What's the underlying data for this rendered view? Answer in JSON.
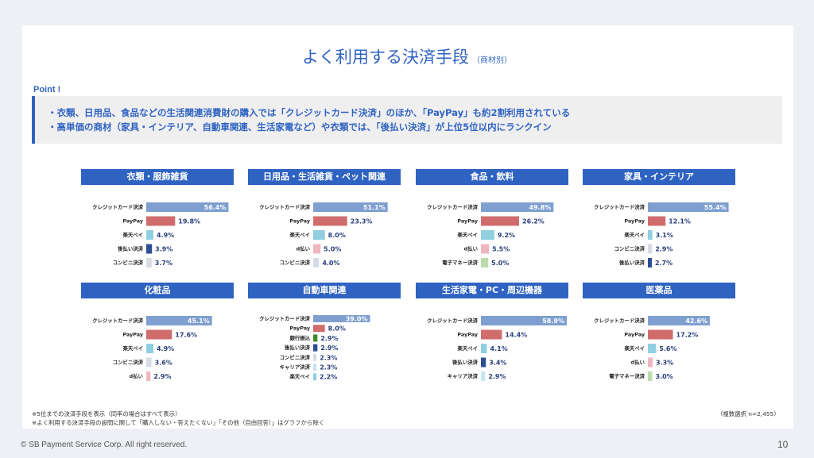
{
  "title": "よく利用する決済手段",
  "subtitle": "（商材別）",
  "point_label": "Point !",
  "points": [
    "・衣類、日用品、食品などの生活関連消費財の購入では「クレジットカード決済」のほか、「PayPay」も約2割利用されている",
    "・高単価の商材（家具・インテリア、自動車関連、生活家電など）や衣類では、「後払い決済」が上位5位以内にランクイン"
  ],
  "colors": {
    "credit": "#7f9fd0",
    "paypay": "#d06c6c",
    "rakuten": "#8fcfe0",
    "atobarai": "#2c4f96",
    "konbini": "#d7dbe3",
    "dbarai": "#f0b6c0",
    "denshi": "#bcdcae",
    "ginko": "#3f8a2a",
    "career": "#c8e4f0",
    "accent": "#2f63c2"
  },
  "chart_data": [
    {
      "type": "bar",
      "title": "衣類・服飾雑貨",
      "categories": [
        "クレジットカード決済",
        "PayPay",
        "楽天ペイ",
        "後払い決済",
        "コンビニ決済"
      ],
      "values": [
        56.4,
        19.8,
        4.9,
        3.9,
        3.7
      ],
      "labels": [
        "56.4%",
        "19.8%",
        "4.9%",
        "3.9%",
        "3.7%"
      ],
      "colors": [
        "credit",
        "paypay",
        "rakuten",
        "atobarai",
        "konbini"
      ]
    },
    {
      "type": "bar",
      "title": "日用品・生活雑貨・ペット関連",
      "categories": [
        "クレジットカード決済",
        "PayPay",
        "楽天ペイ",
        "d払い",
        "コンビニ決済"
      ],
      "values": [
        51.1,
        23.3,
        8.0,
        5.0,
        4.0
      ],
      "labels": [
        "51.1%",
        "23.3%",
        "8.0%",
        "5.0%",
        "4.0%"
      ],
      "colors": [
        "credit",
        "paypay",
        "rakuten",
        "dbarai",
        "konbini"
      ]
    },
    {
      "type": "bar",
      "title": "食品・飲料",
      "categories": [
        "クレジットカード決済",
        "PayPay",
        "楽天ペイ",
        "d払い",
        "電子マネー決済"
      ],
      "values": [
        49.8,
        26.2,
        9.2,
        5.5,
        5.0
      ],
      "labels": [
        "49.8%",
        "26.2%",
        "9.2%",
        "5.5%",
        "5.0%"
      ],
      "colors": [
        "credit",
        "paypay",
        "rakuten",
        "dbarai",
        "denshi"
      ]
    },
    {
      "type": "bar",
      "title": "家具・インテリア",
      "categories": [
        "クレジットカード決済",
        "PayPay",
        "楽天ペイ",
        "コンビニ決済",
        "後払い決済"
      ],
      "values": [
        55.4,
        12.1,
        3.1,
        2.9,
        2.7
      ],
      "labels": [
        "55.4%",
        "12.1%",
        "3.1%",
        "2.9%",
        "2.7%"
      ],
      "colors": [
        "credit",
        "paypay",
        "rakuten",
        "konbini",
        "atobarai"
      ]
    },
    {
      "type": "bar",
      "title": "化粧品",
      "categories": [
        "クレジットカード決済",
        "PayPay",
        "楽天ペイ",
        "コンビニ決済",
        "d払い"
      ],
      "values": [
        45.1,
        17.6,
        4.9,
        3.6,
        2.9
      ],
      "labels": [
        "45.1%",
        "17.6%",
        "4.9%",
        "3.6%",
        "2.9%"
      ],
      "colors": [
        "credit",
        "paypay",
        "rakuten",
        "konbini",
        "dbarai"
      ]
    },
    {
      "type": "bar",
      "title": "自動車関連",
      "categories": [
        "クレジットカード決済",
        "PayPay",
        "銀行振込",
        "後払い決済",
        "コンビニ決済",
        "キャリア決済",
        "楽天ペイ"
      ],
      "values": [
        39.0,
        8.0,
        2.9,
        2.9,
        2.3,
        2.3,
        2.2
      ],
      "labels": [
        "39.0%",
        "8.0%",
        "2.9%",
        "2.9%",
        "2.3%",
        "2.3%",
        "2.2%"
      ],
      "colors": [
        "credit",
        "paypay",
        "ginko",
        "atobarai",
        "konbini",
        "career",
        "rakuten"
      ]
    },
    {
      "type": "bar",
      "title": "生活家電・PC・周辺機器",
      "categories": [
        "クレジットカード決済",
        "PayPay",
        "楽天ペイ",
        "後払い決済",
        "キャリア決済"
      ],
      "values": [
        58.9,
        14.4,
        4.1,
        3.4,
        2.9
      ],
      "labels": [
        "58.9%",
        "14.4%",
        "4.1%",
        "3.4%",
        "2.9%"
      ],
      "colors": [
        "credit",
        "paypay",
        "rakuten",
        "atobarai",
        "career"
      ]
    },
    {
      "type": "bar",
      "title": "医薬品",
      "categories": [
        "クレジットカード決済",
        "PayPay",
        "楽天ペイ",
        "d払い",
        "電子マネー決済"
      ],
      "values": [
        42.6,
        17.2,
        5.6,
        3.3,
        3.0
      ],
      "labels": [
        "42.6%",
        "17.2%",
        "5.6%",
        "3.3%",
        "3.0%"
      ],
      "colors": [
        "credit",
        "paypay",
        "rakuten",
        "dbarai",
        "denshi"
      ]
    }
  ],
  "footnotes": [
    "※5位までの決済手段を表示（同率の場合はすべて表示）",
    "※よく利用する決済手段の設問に関して「購入しない・答えたくない」「その他（自由回答）」はグラフから除く"
  ],
  "sample_note": "（複数選択 n=2,455）",
  "copyright": "© SB Payment Service Corp. All right reserved.",
  "page_number": "10"
}
